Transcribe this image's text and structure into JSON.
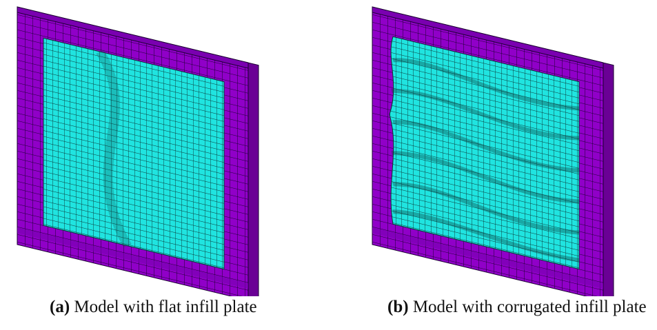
{
  "panels": [
    {
      "label": "(a)",
      "caption": "Model with flat infill plate"
    },
    {
      "label": "(b)",
      "caption": "Model with corrugated infill plate"
    }
  ]
}
